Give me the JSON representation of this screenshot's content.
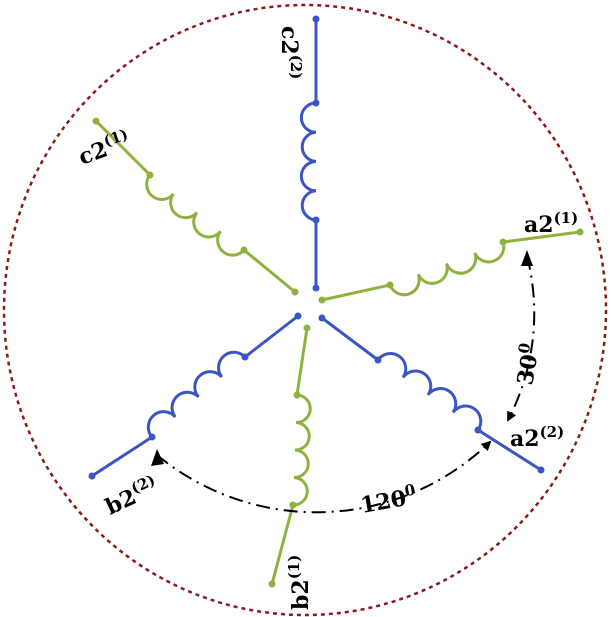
{
  "colors": {
    "blue": "#3a56c5",
    "green": "#8fb23f",
    "boundary": "#8b1a1a",
    "arrow": "#000000"
  },
  "labels": {
    "a1": {
      "base": "a2",
      "sup": "(1)"
    },
    "a2": {
      "base": "a2",
      "sup": "(2)"
    },
    "b1": {
      "base": "b2",
      "sup": "(1)"
    },
    "b2": {
      "base": "b2",
      "sup": "(2)"
    },
    "c1": {
      "base": "c2",
      "sup": "(1)"
    },
    "c2": {
      "base": "c2",
      "sup": "(2)"
    }
  },
  "angles": {
    "small": {
      "value": "30",
      "sup": "0"
    },
    "large": {
      "value": "120",
      "sup": "0"
    }
  }
}
